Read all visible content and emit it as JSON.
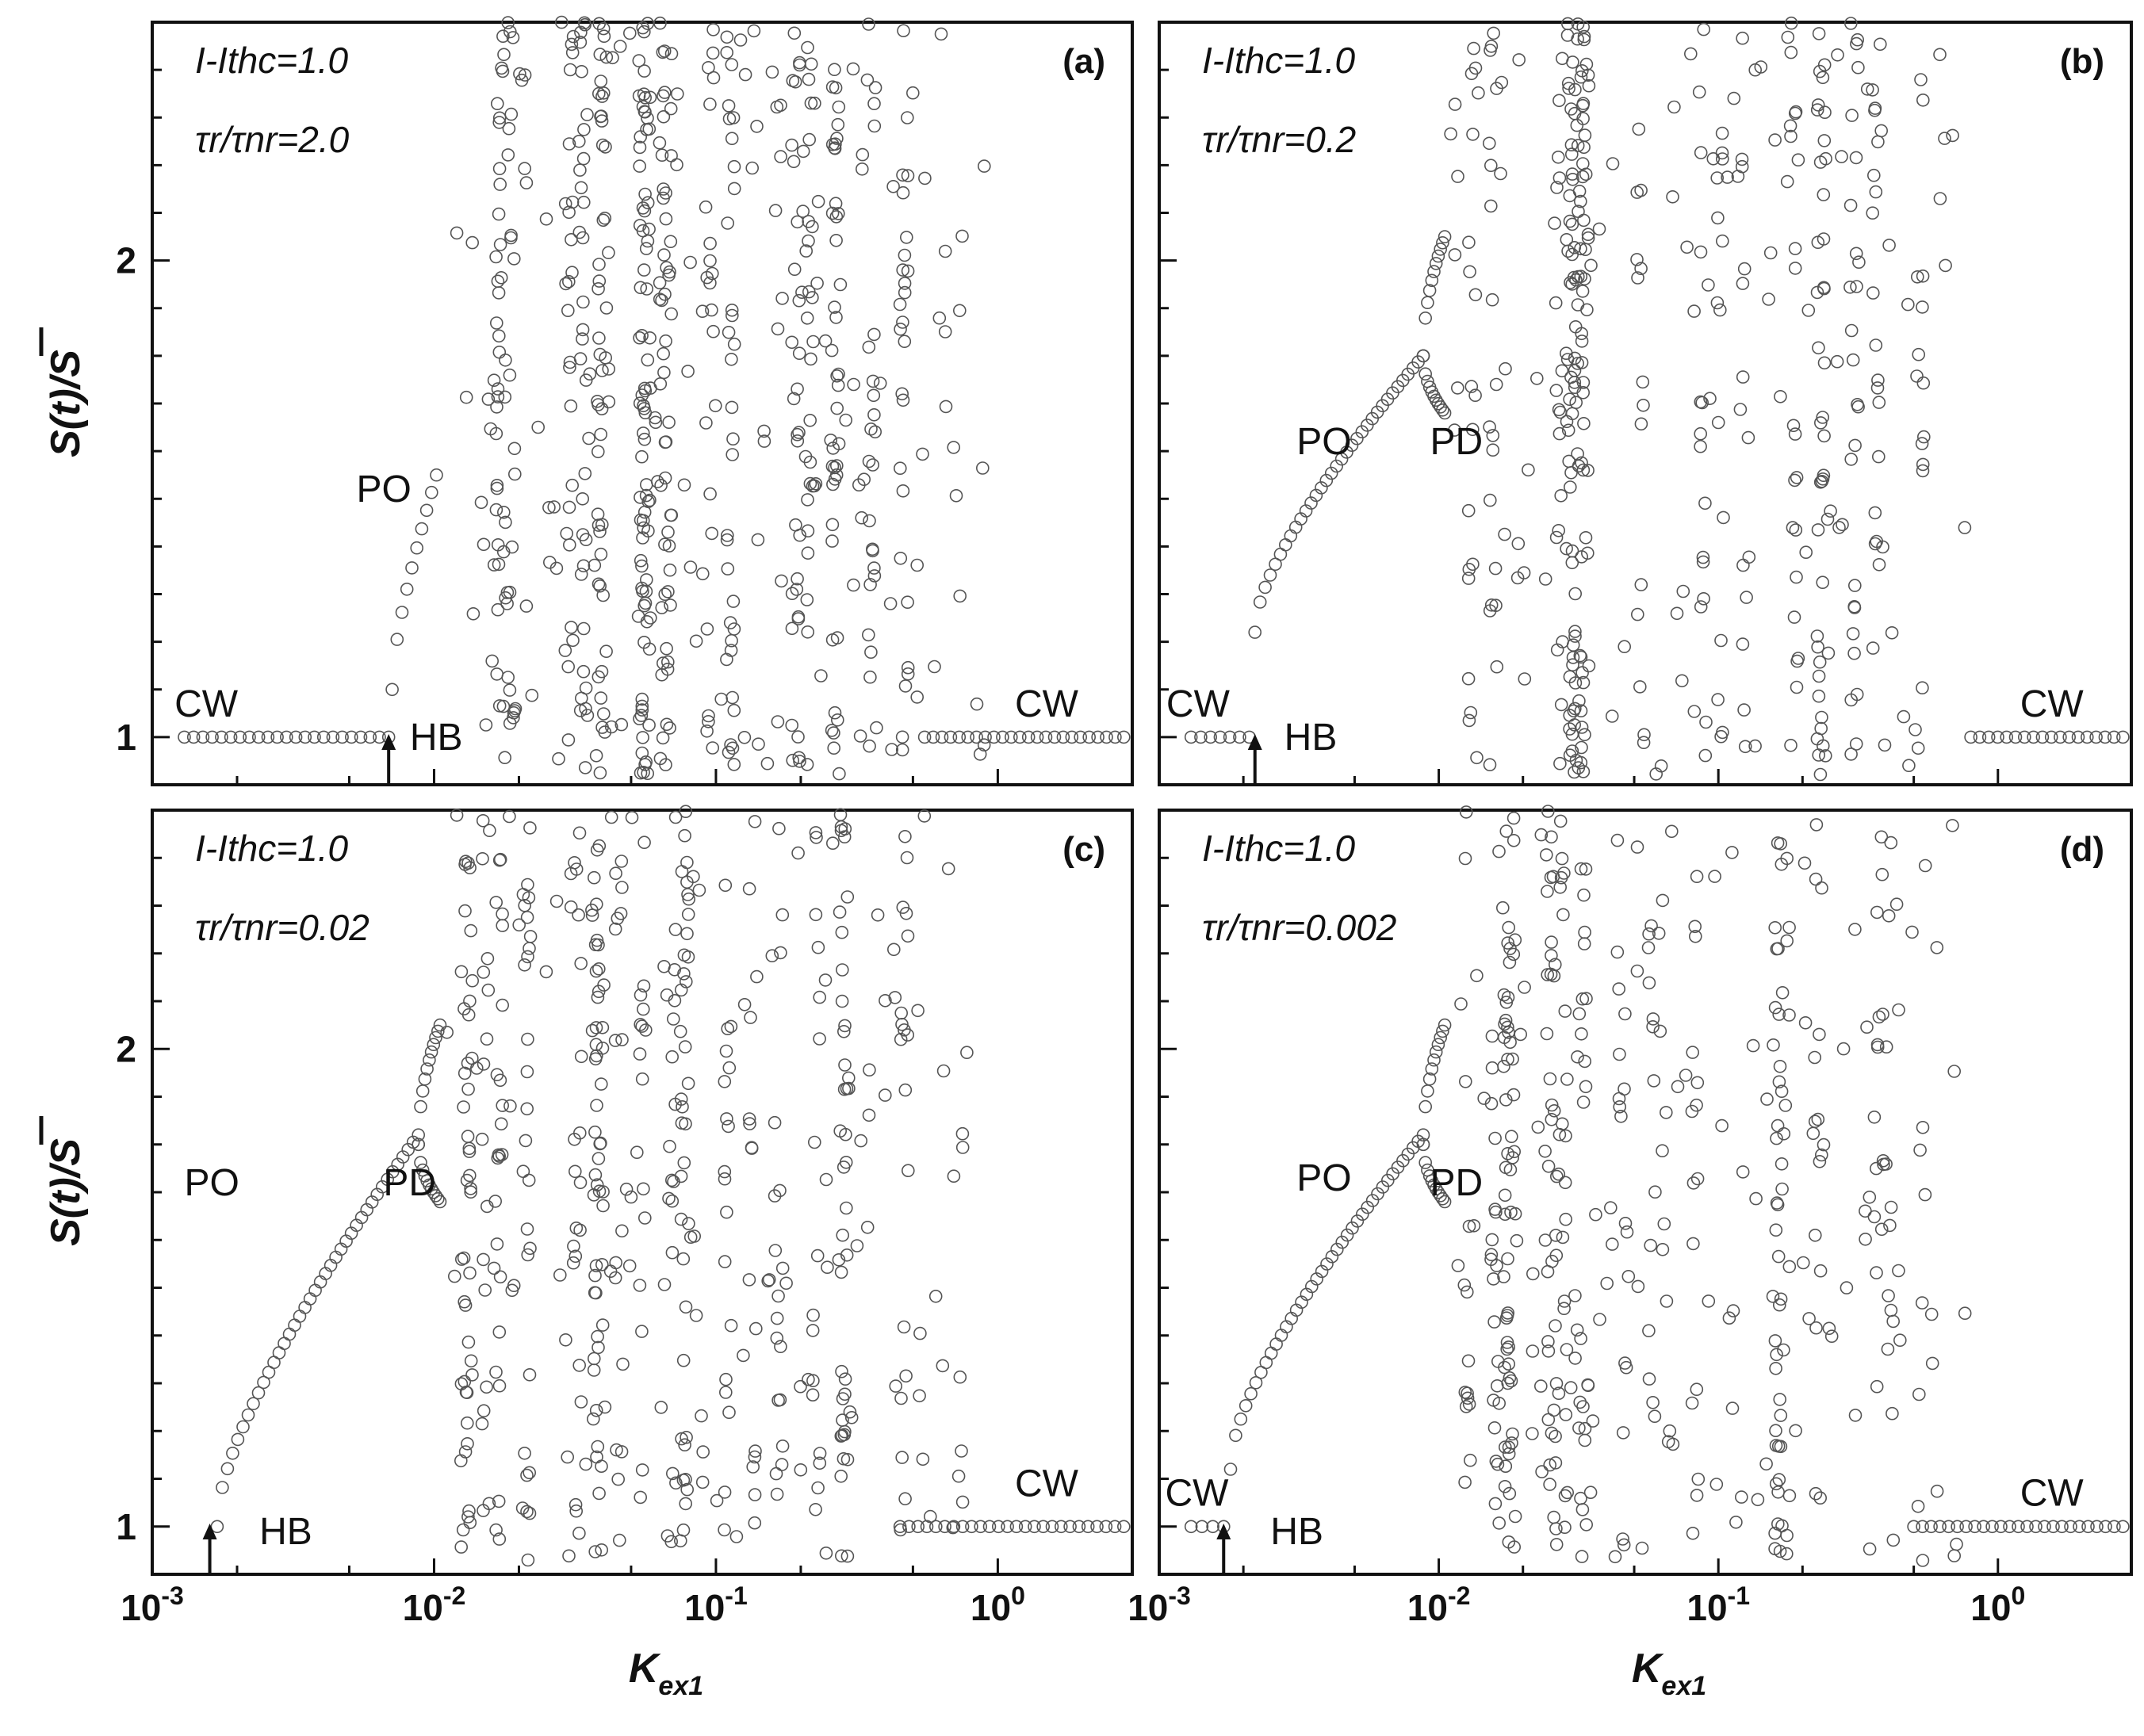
{
  "chart_data": [
    {
      "panel": "(a)",
      "type": "scatter",
      "x_scale": "log",
      "xlim": [
        0.001,
        3.0
      ],
      "ylim": [
        0.9,
        2.5
      ],
      "y_ticks": [
        1,
        2
      ],
      "x_ticks": [
        0.001,
        0.01,
        0.1,
        1.0
      ],
      "param1": "I-Ithc=1.0",
      "param2": "τr/τnr=2.0",
      "annotations": [
        {
          "text": "CW",
          "x": 0.0012,
          "y": 1.07
        },
        {
          "text": "HB",
          "x": 0.0082,
          "y": 1.0
        },
        {
          "text": "PO",
          "x": 0.0053,
          "y": 1.52
        },
        {
          "text": "CW",
          "x": 1.15,
          "y": 1.07
        }
      ],
      "hb_arrow_x": 0.0069,
      "regimes": {
        "cw_low": {
          "x_start": 0.0013,
          "x_end": 0.0069,
          "y": 1.0
        },
        "po_curve": {
          "x_start": 0.0071,
          "x_end": 0.0102,
          "y_start": 1.1,
          "y_end": 1.55
        },
        "chaotic": {
          "x_start": 0.012,
          "x_end": 0.9,
          "y_range": [
            0.92,
            2.5
          ]
        },
        "cw_high": {
          "x_start": 0.55,
          "x_end": 2.8,
          "y": 1.0
        }
      },
      "seed": 11,
      "n_chaotic": 620
    },
    {
      "panel": "(b)",
      "type": "scatter",
      "x_scale": "log",
      "xlim": [
        0.001,
        3.0
      ],
      "ylim": [
        0.9,
        2.5
      ],
      "y_ticks": [
        1,
        2
      ],
      "x_ticks": [
        0.001,
        0.01,
        0.1,
        1.0
      ],
      "param1": "I-Ithc=1.0",
      "param2": "τr/τnr=0.2",
      "annotations": [
        {
          "text": "CW",
          "x": 0.00106,
          "y": 1.07
        },
        {
          "text": "HB",
          "x": 0.0028,
          "y": 1.0
        },
        {
          "text": "PO",
          "x": 0.0031,
          "y": 1.62
        },
        {
          "text": "PD",
          "x": 0.0093,
          "y": 1.62
        },
        {
          "text": "CW",
          "x": 1.2,
          "y": 1.07
        }
      ],
      "hb_arrow_x": 0.0022,
      "regimes": {
        "cw_low": {
          "x_start": 0.0013,
          "x_end": 0.0021,
          "y": 1.0
        },
        "po_curve": {
          "x_start": 0.0022,
          "x_end": 0.0088,
          "y_start": 1.22,
          "y_end": 1.8
        },
        "pd_branch": {
          "x_start": 0.0088,
          "x_end": 0.0105
        },
        "chaotic": {
          "x_start": 0.011,
          "x_end": 0.8,
          "y_range": [
            0.92,
            2.5
          ]
        },
        "cw_high": {
          "x_start": 0.8,
          "x_end": 2.8,
          "y": 1.0
        }
      },
      "seed": 23,
      "n_chaotic": 430
    },
    {
      "panel": "(c)",
      "type": "scatter",
      "x_scale": "log",
      "xlim": [
        0.001,
        3.0
      ],
      "ylim": [
        0.9,
        2.5
      ],
      "y_ticks": [
        1,
        2
      ],
      "x_ticks": [
        0.001,
        0.01,
        0.1,
        1.0
      ],
      "param1": "I-Ithc=1.0",
      "param2": "τr/τnr=0.02",
      "annotations": [
        {
          "text": "HB",
          "x": 0.0024,
          "y": 0.99
        },
        {
          "text": "PO",
          "x": 0.0013,
          "y": 1.72
        },
        {
          "text": "PD",
          "x": 0.0066,
          "y": 1.72
        },
        {
          "text": "CW",
          "x": 1.15,
          "y": 1.09
        }
      ],
      "hb_arrow_x": 0.0016,
      "regimes": {
        "po_curve": {
          "x_start": 0.0017,
          "x_end": 0.0088,
          "y_start": 1.0,
          "y_end": 1.82
        },
        "pd_branch": {
          "x_start": 0.0088,
          "x_end": 0.0105
        },
        "chaotic": {
          "x_start": 0.011,
          "x_end": 0.8,
          "y_range": [
            0.92,
            2.5
          ]
        },
        "cw_high": {
          "x_start": 0.45,
          "x_end": 2.8,
          "y": 1.0
        }
      },
      "seed": 37,
      "n_chaotic": 480
    },
    {
      "panel": "(d)",
      "type": "scatter",
      "x_scale": "log",
      "xlim": [
        0.001,
        3.0
      ],
      "ylim": [
        0.9,
        2.5
      ],
      "y_ticks": [
        1,
        2
      ],
      "x_ticks": [
        0.001,
        0.01,
        0.1,
        1.0
      ],
      "param1": "I-Ithc=1.0",
      "param2": "τr/τnr=0.002",
      "annotations": [
        {
          "text": "CW",
          "x": 0.00105,
          "y": 1.07
        },
        {
          "text": "HB",
          "x": 0.0025,
          "y": 0.99
        },
        {
          "text": "PO",
          "x": 0.0031,
          "y": 1.73
        },
        {
          "text": "PD",
          "x": 0.0093,
          "y": 1.72
        },
        {
          "text": "CW",
          "x": 1.2,
          "y": 1.07
        }
      ],
      "hb_arrow_x": 0.0017,
      "regimes": {
        "cw_low": {
          "x_start": 0.0013,
          "x_end": 0.0017,
          "y": 1.0
        },
        "po_curve": {
          "x_start": 0.0018,
          "x_end": 0.0088,
          "y_start": 1.12,
          "y_end": 1.82
        },
        "pd_branch": {
          "x_start": 0.0088,
          "x_end": 0.0105
        },
        "chaotic": {
          "x_start": 0.011,
          "x_end": 0.8,
          "y_range": [
            0.92,
            2.5
          ]
        },
        "cw_high": {
          "x_start": 0.5,
          "x_end": 2.8,
          "y": 1.0
        }
      },
      "seed": 53,
      "n_chaotic": 420
    }
  ],
  "axis": {
    "ylabel": "S(t)/S",
    "xlabel_main": "K",
    "xlabel_sub": "ex1",
    "xtick_base": "10",
    "xtick_exps": [
      "-3",
      "-2",
      "-1",
      "0"
    ],
    "ytick_labels": [
      "1",
      "2"
    ]
  },
  "colors": {
    "marker": "#555555",
    "frame": "#111111"
  }
}
